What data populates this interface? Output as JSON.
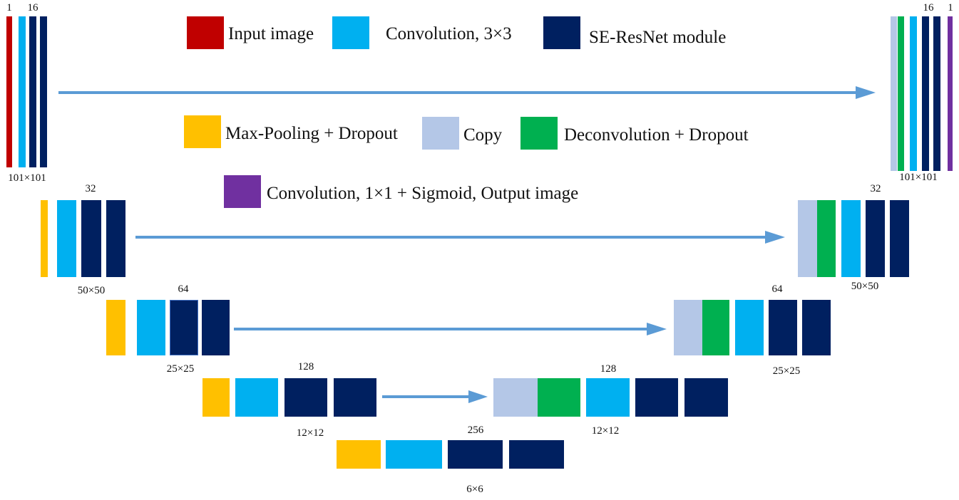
{
  "colors": {
    "input": "#c00000",
    "conv3": "#00b0f0",
    "se": "#002060",
    "pool": "#ffc000",
    "copy": "#b4c7e7",
    "deconv": "#00b050",
    "conv1": "#7030a0",
    "arrow": "#5b9bd5"
  },
  "legend": {
    "input_image": "Input image",
    "convolution_3x3": "Convolution, 3×3",
    "se_resnet": "SE-ResNet module",
    "max_pooling": "Max-Pooling + Dropout",
    "copy": "Copy",
    "deconvolution": "Deconvolution + Dropout",
    "conv_1x1": "Convolution, 1×1 + Sigmoid, Output image"
  },
  "labels": {
    "enc0_ch_in": "1",
    "enc0_ch": "16",
    "enc0_size": "101×101",
    "enc1_ch": "32",
    "enc1_size": "50×50",
    "enc2_ch": "64",
    "enc2_size": "25×25",
    "enc3_ch": "128",
    "enc3_size": "12×12",
    "bottom_ch": "256",
    "bottom_size": "6×6",
    "dec3_ch": "128",
    "dec3_size": "12×12",
    "dec2_ch": "64",
    "dec2_size": "25×25",
    "dec1_ch": "32",
    "dec1_size": "50×50",
    "dec0_ch": "16",
    "dec0_ch_out": "1",
    "dec0_size": "101×101"
  }
}
